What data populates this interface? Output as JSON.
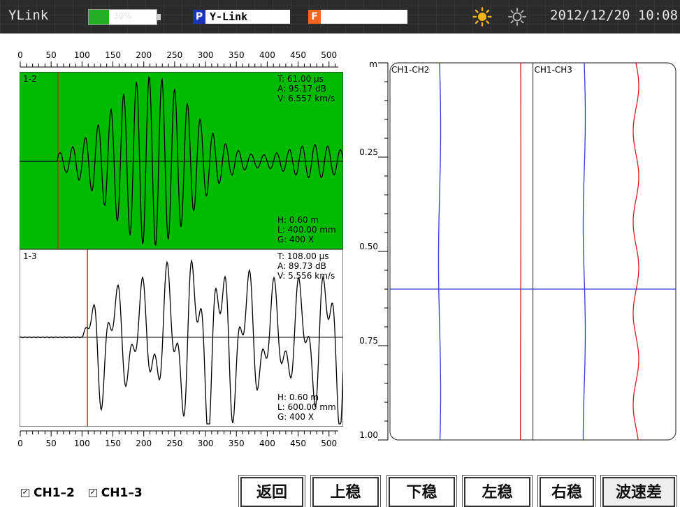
{
  "topbar": {
    "brand": "YLink",
    "battery_text": "30%",
    "battery_level": 0.3,
    "p_badge": "P",
    "p_value": "Y-Link",
    "f_badge": "F",
    "f_value": "",
    "datetime": "2012/12/20 10:08",
    "icons": [
      "brightness-high-icon",
      "brightness-low-icon"
    ]
  },
  "ruler": {
    "ticks": [
      0,
      50,
      100,
      150,
      200,
      250,
      300,
      350,
      400,
      450,
      500
    ],
    "max": 515
  },
  "waves": [
    {
      "id": "1-2",
      "bg": "#00bb00",
      "cursor": 61,
      "T": "T:  61.00 μs",
      "A": "A:  95.17 dB",
      "V": "V:  6.557 km/s",
      "H": "H:  0.60 m",
      "L": "L:  400.00 mm",
      "G": "G:  400 X"
    },
    {
      "id": "1-3",
      "bg": "#ffffff",
      "cursor": 108,
      "T": "T:  108.00 μs",
      "A": "A:  89.73 dB",
      "V": "V:  5.556 km/s",
      "H": "H:  0.60 m",
      "L": "L:  600.00 mm",
      "G": "G:  400 X"
    }
  ],
  "depth_chart": {
    "unit": "m",
    "ticks": [
      "0.25",
      "0.50",
      "0.75",
      "1.00"
    ],
    "range": [
      0,
      1.0
    ],
    "cursor_depth": 0.6,
    "columns": [
      {
        "title": "CH1-CH2"
      },
      {
        "title": "CH1-CH3"
      }
    ],
    "colors": {
      "velocity": "#2a3fd6",
      "amplitude": "#d61f1f",
      "cursor": "#2a3fd6"
    }
  },
  "checkboxes": [
    {
      "label": "CH1–2",
      "checked": true
    },
    {
      "label": "CH1–3",
      "checked": true
    }
  ],
  "buttons": [
    {
      "label": "返回",
      "name": "back-button"
    },
    {
      "label": "上稳",
      "name": "up-button"
    },
    {
      "label": "下稳",
      "name": "down-button"
    },
    {
      "label": "左稳",
      "name": "left-button"
    },
    {
      "label": "右稳",
      "name": "right-button"
    },
    {
      "label": "波速差",
      "name": "velocity-diff-button"
    }
  ]
}
